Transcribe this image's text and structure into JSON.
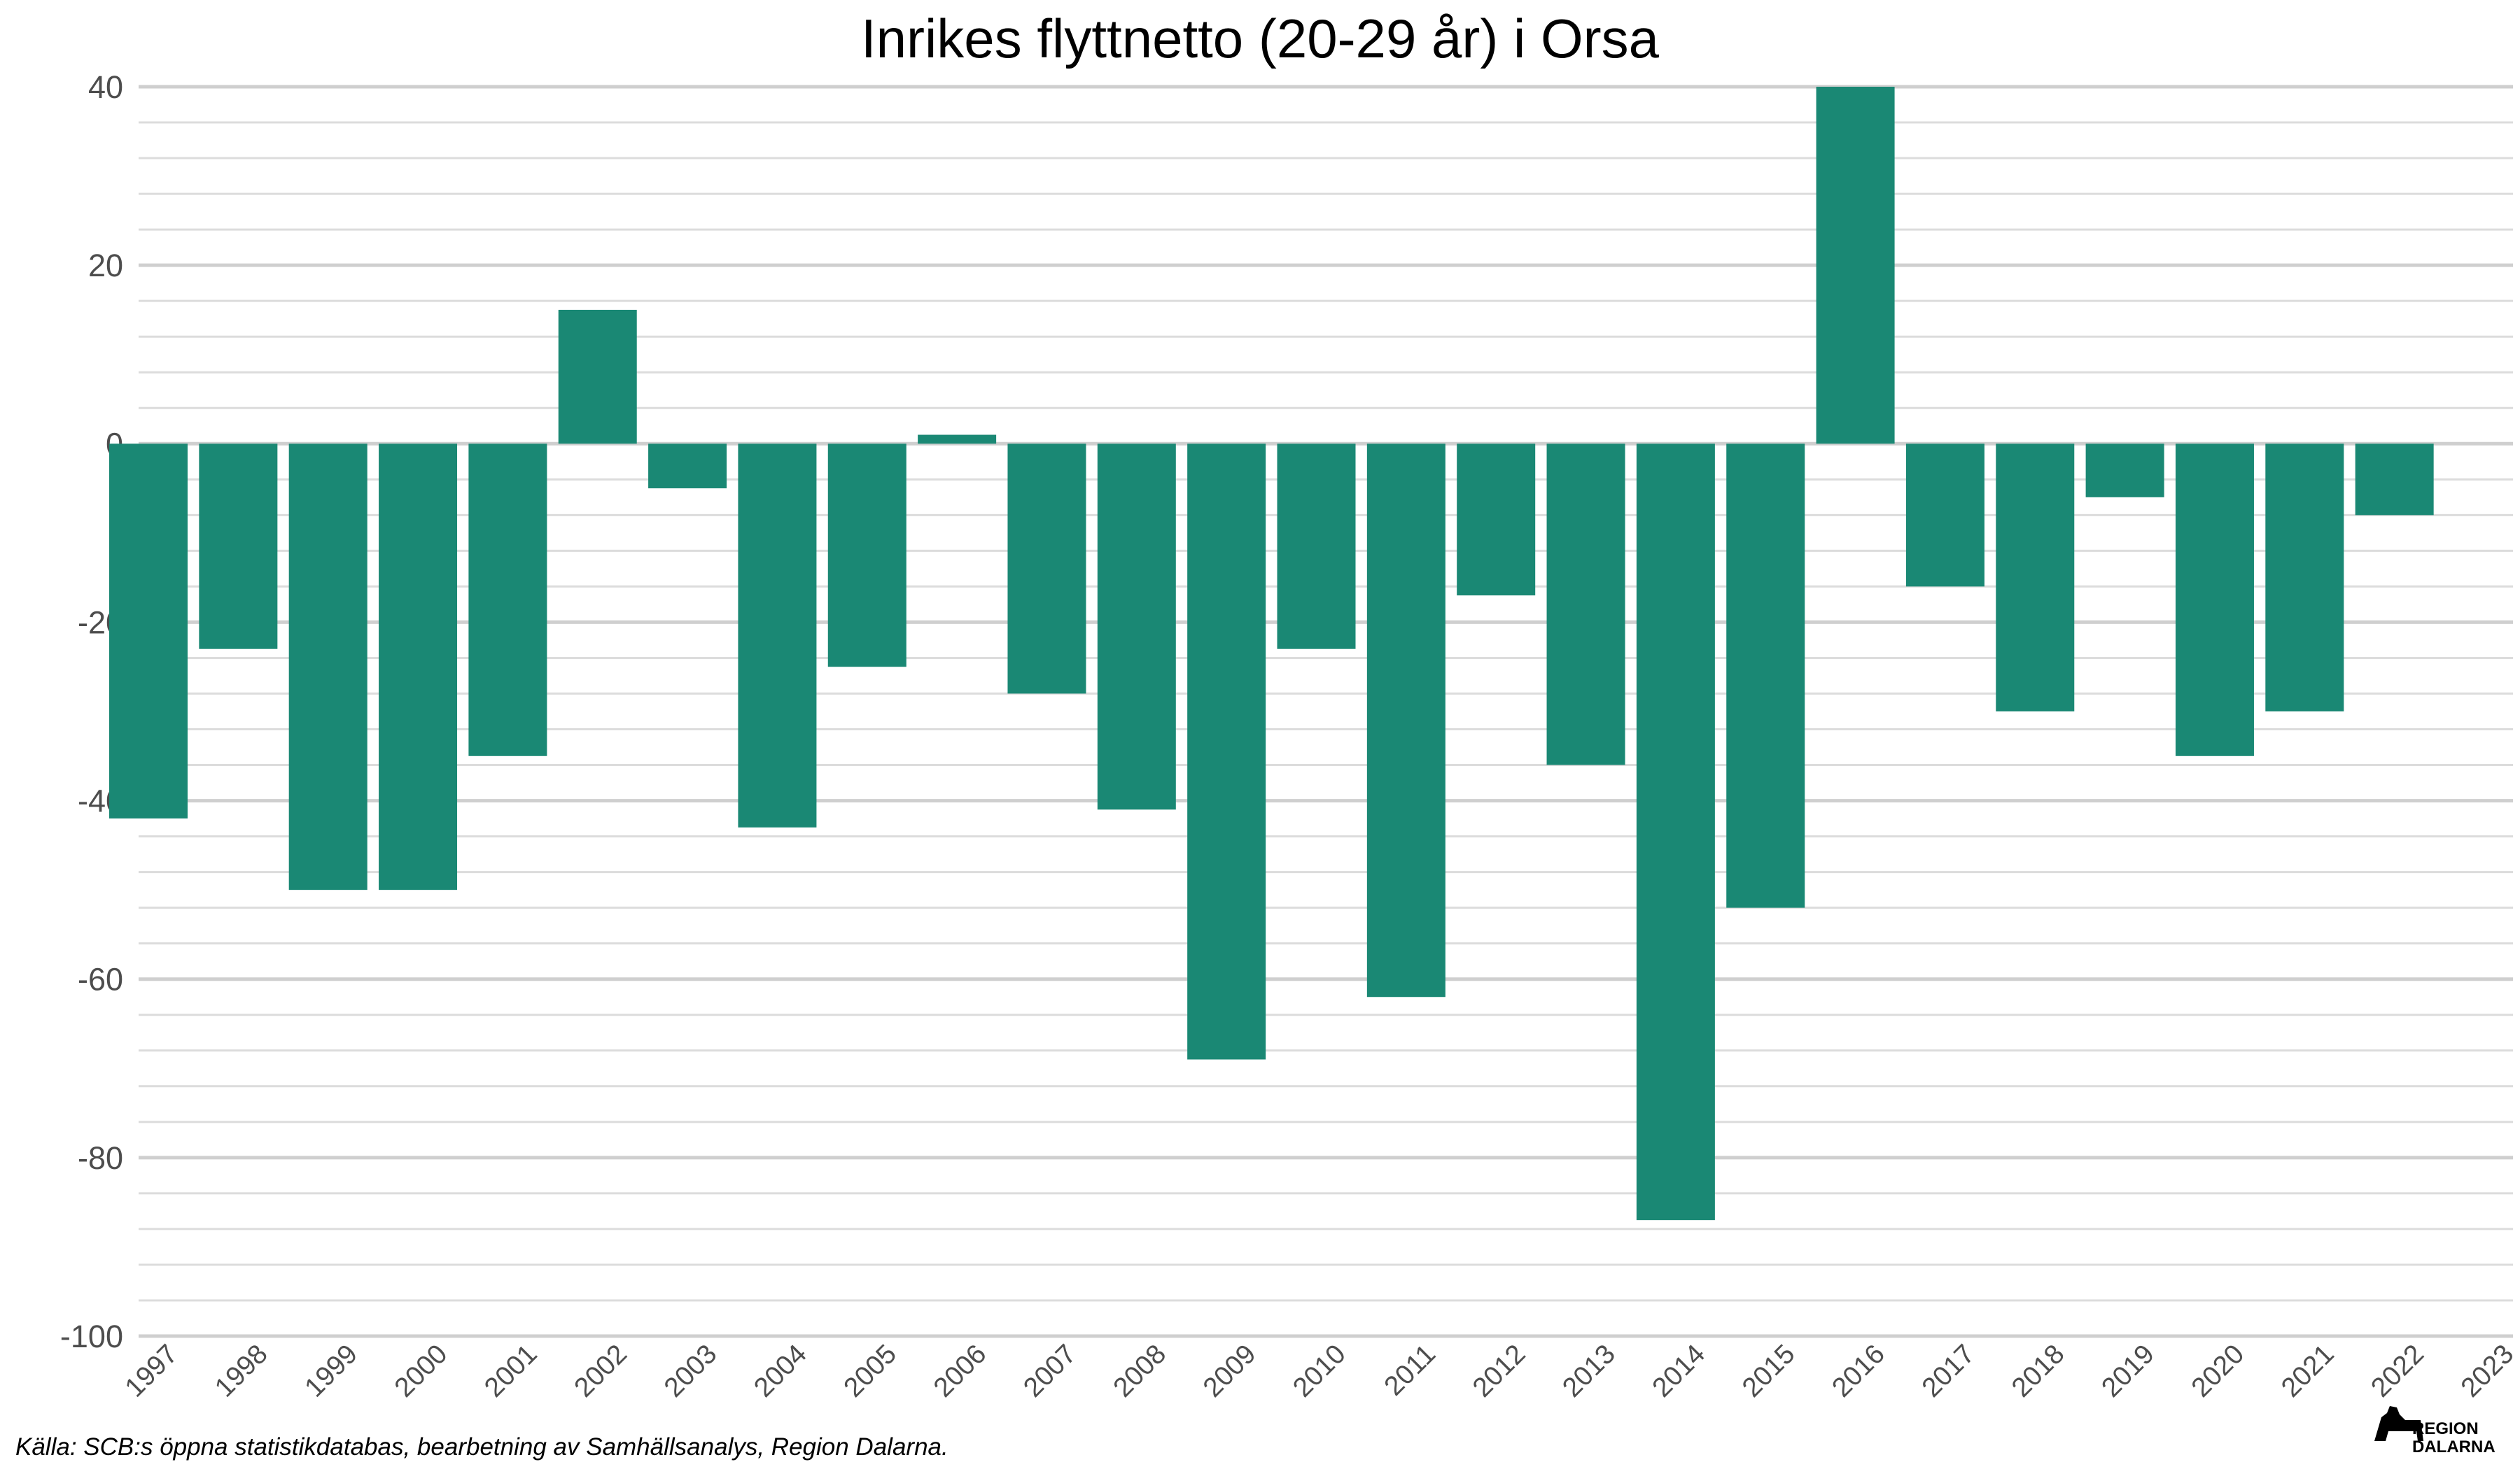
{
  "chart_data": {
    "type": "bar",
    "title": "Inrikes flyttnetto (20-29 år) i Orsa",
    "xlabel": "",
    "ylabel": "",
    "categories": [
      "1997",
      "1998",
      "1999",
      "2000",
      "2001",
      "2002",
      "2003",
      "2004",
      "2005",
      "2006",
      "2007",
      "2008",
      "2009",
      "2010",
      "2011",
      "2012",
      "2013",
      "2014",
      "2015",
      "2016",
      "2017",
      "2018",
      "2019",
      "2020",
      "2021",
      "2022",
      "2023"
    ],
    "values": [
      -42,
      -23,
      -50,
      -50,
      -35,
      15,
      -5,
      -43,
      -25,
      1,
      -28,
      -41,
      -69,
      -23,
      -62,
      -17,
      -36,
      -87,
      -52,
      40,
      -16,
      -30,
      -6,
      -35,
      -30,
      -8,
      null
    ],
    "ylim": [
      -100,
      40
    ],
    "yticks": [
      40,
      20,
      0,
      -20,
      -40,
      -60,
      -80,
      -100
    ],
    "minor_step": 4,
    "grid": true,
    "bar_color": "#1a8874",
    "caption": "Källa: SCB:s öppna statistikdatabas, bearbetning av Samhällsanalys, Region Dalarna."
  },
  "logo": {
    "line1": "REGION",
    "line2": "DALARNA"
  }
}
